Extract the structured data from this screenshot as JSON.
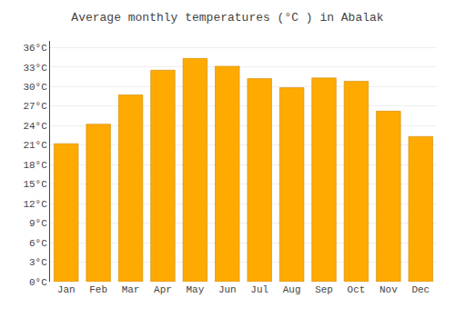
{
  "chart_data": {
    "type": "bar",
    "title": "Average monthly temperatures (°C ) in Abalak",
    "categories": [
      "Jan",
      "Feb",
      "Mar",
      "Apr",
      "May",
      "Jun",
      "Jul",
      "Aug",
      "Sep",
      "Oct",
      "Nov",
      "Dec"
    ],
    "values": [
      21.2,
      24.2,
      28.7,
      32.5,
      34.3,
      33.1,
      31.2,
      29.8,
      31.3,
      30.8,
      26.2,
      22.3
    ],
    "color": "#FFAA00",
    "ylim": [
      0,
      37
    ],
    "yticks": [
      {
        "value": 0,
        "label": "0°C"
      },
      {
        "value": 3,
        "label": "3°C"
      },
      {
        "value": 6,
        "label": "6°C"
      },
      {
        "value": 9,
        "label": "9°C"
      },
      {
        "value": 12,
        "label": "12°C"
      },
      {
        "value": 15,
        "label": "15°C"
      },
      {
        "value": 18,
        "label": "18°C"
      },
      {
        "value": 21,
        "label": "21°C"
      },
      {
        "value": 24,
        "label": "24°C"
      },
      {
        "value": 27,
        "label": "27°C"
      },
      {
        "value": 30,
        "label": "30°C"
      },
      {
        "value": 33,
        "label": "33°C"
      },
      {
        "value": 36,
        "label": "36°C"
      }
    ],
    "grid": true
  }
}
